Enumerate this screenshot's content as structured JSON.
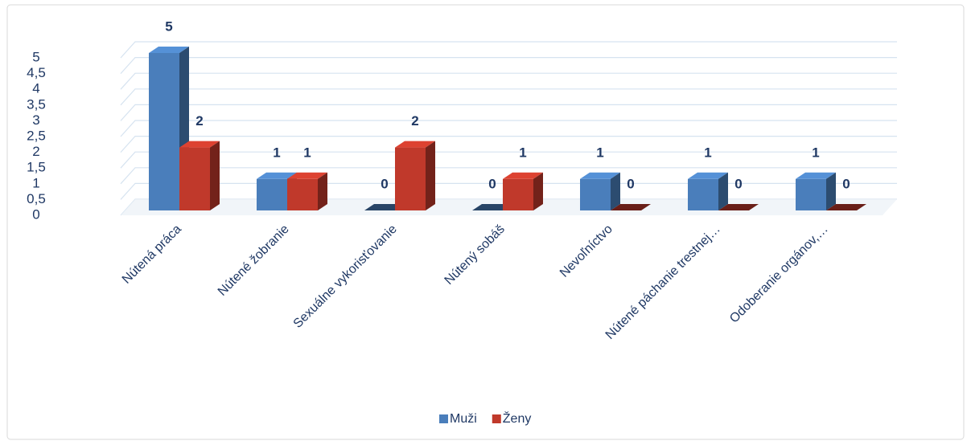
{
  "chart_data": {
    "type": "bar3d",
    "categories": [
      "Nútená práca",
      "Nútené žobranie",
      "Sexuálne vykorisťovanie",
      "Nútený sobáš",
      "Nevoľníctvo",
      "Nútené páchanie trestnej…",
      "Odoberanie orgánov,…"
    ],
    "series": [
      {
        "name": "Muži",
        "color": "#4a7ebb",
        "values": [
          5,
          1,
          0,
          0,
          1,
          1,
          1
        ]
      },
      {
        "name": "Ženy",
        "color": "#c0392b",
        "values": [
          2,
          1,
          2,
          1,
          0,
          0,
          0
        ]
      }
    ],
    "ylim": [
      0,
      5
    ],
    "yticks": [
      0,
      {
        "value": 0.5,
        "label": "0,5"
      },
      1,
      {
        "value": 1.5,
        "label": "1,5"
      },
      2,
      {
        "value": 2.5,
        "label": "2,5"
      },
      3,
      {
        "value": 3.5,
        "label": "3,5"
      },
      4,
      {
        "value": 4.5,
        "label": "4,5"
      },
      5
    ],
    "grid": true,
    "legend": "bottom"
  }
}
